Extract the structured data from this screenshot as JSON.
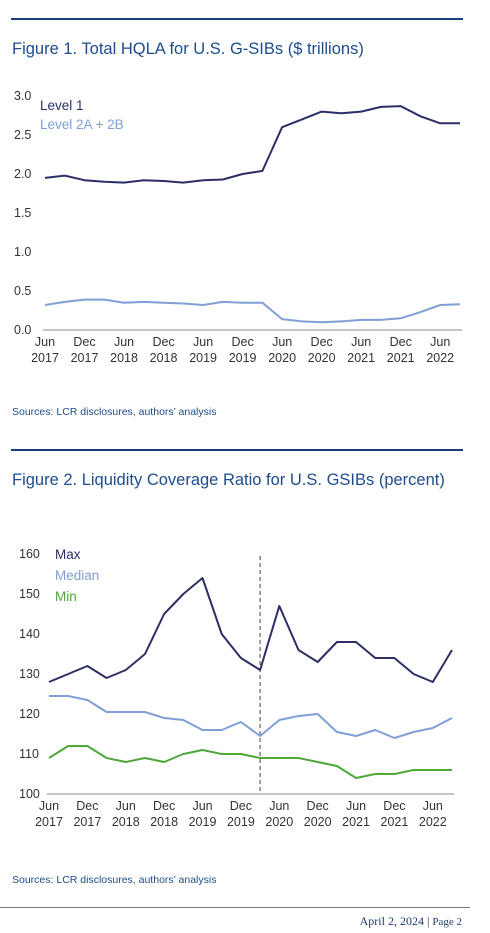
{
  "chart_data": [
    {
      "type": "line",
      "title": "Figure 1. Total HQLA for U.S. G-SIBs ($ trillions)",
      "categories": [
        "Jun 2017",
        "Sep 2017",
        "Dec 2017",
        "Mar 2018",
        "Jun 2018",
        "Sep 2018",
        "Dec 2018",
        "Mar 2019",
        "Jun 2019",
        "Sep 2019",
        "Dec 2019",
        "Mar 2020",
        "Jun 2020",
        "Sep 2020",
        "Dec 2020",
        "Mar 2021",
        "Jun 2021",
        "Sep 2021",
        "Dec 2021",
        "Mar 2022",
        "Jun 2022",
        "Sep 2022"
      ],
      "x_tick_labels": [
        {
          "month": "Jun",
          "year": "2017"
        },
        {
          "month": "Dec",
          "year": "2017"
        },
        {
          "month": "Jun",
          "year": "2018"
        },
        {
          "month": "Dec",
          "year": "2018"
        },
        {
          "month": "Jun",
          "year": "2019"
        },
        {
          "month": "Dec",
          "year": "2019"
        },
        {
          "month": "Jun",
          "year": "2020"
        },
        {
          "month": "Dec",
          "year": "2020"
        },
        {
          "month": "Jun",
          "year": "2021"
        },
        {
          "month": "Dec",
          "year": "2021"
        },
        {
          "month": "Jun",
          "year": "2022"
        }
      ],
      "y_tick_labels": [
        "0.0",
        "0.5",
        "1.0",
        "1.5",
        "2.0",
        "2.5",
        "3.0"
      ],
      "ylim": [
        0,
        3.0
      ],
      "grid": false,
      "legend_position": "top-left",
      "series": [
        {
          "name": "Level 1",
          "color": "#2b2f66",
          "values": [
            1.95,
            1.98,
            1.92,
            1.9,
            1.89,
            1.92,
            1.91,
            1.89,
            1.92,
            1.93,
            2.0,
            2.04,
            2.6,
            2.7,
            2.8,
            2.78,
            2.8,
            2.86,
            2.87,
            2.74,
            2.65,
            2.65
          ]
        },
        {
          "name": "Level 2A + 2B",
          "color": "#7f9fd6",
          "values": [
            0.32,
            0.36,
            0.39,
            0.39,
            0.35,
            0.36,
            0.35,
            0.34,
            0.32,
            0.36,
            0.35,
            0.35,
            0.14,
            0.11,
            0.1,
            0.11,
            0.13,
            0.13,
            0.15,
            0.23,
            0.32,
            0.33
          ]
        }
      ],
      "source": "Sources: LCR disclosures, authors’ analysis"
    },
    {
      "type": "line",
      "title": "Figure 2. Liquidity Coverage Ratio for U.S. GSIBs (percent)",
      "categories": [
        "Jun 2017",
        "Sep 2017",
        "Dec 2017",
        "Mar 2018",
        "Jun 2018",
        "Sep 2018",
        "Dec 2018",
        "Mar 2019",
        "Jun 2019",
        "Sep 2019",
        "Dec 2019",
        "Mar 2020",
        "Jun 2020",
        "Sep 2020",
        "Dec 2020",
        "Mar 2021",
        "Jun 2021",
        "Sep 2021",
        "Dec 2021",
        "Mar 2022",
        "Jun 2022",
        "Sep 2022"
      ],
      "x_tick_labels": [
        {
          "month": "Jun",
          "year": "2017"
        },
        {
          "month": "Dec",
          "year": "2017"
        },
        {
          "month": "Jun",
          "year": "2018"
        },
        {
          "month": "Dec",
          "year": "2018"
        },
        {
          "month": "Jun",
          "year": "2019"
        },
        {
          "month": "Dec",
          "year": "2019"
        },
        {
          "month": "Jun",
          "year": "2020"
        },
        {
          "month": "Dec",
          "year": "2020"
        },
        {
          "month": "Jun",
          "year": "2021"
        },
        {
          "month": "Dec",
          "year": "2021"
        },
        {
          "month": "Jun",
          "year": "2022"
        }
      ],
      "y_tick_labels": [
        "100",
        "110",
        "120",
        "130",
        "140",
        "150",
        "160"
      ],
      "ylim": [
        100,
        160
      ],
      "grid": false,
      "legend_position": "top-left",
      "vertical_marker": {
        "at": "Mar 2020",
        "style": "dashed"
      },
      "series": [
        {
          "name": "Max",
          "color": "#2b2f66",
          "values": [
            128,
            130,
            132,
            129,
            131,
            135,
            145,
            150,
            154,
            140,
            134,
            131,
            147,
            136,
            133,
            138,
            138,
            134,
            134,
            130,
            128,
            136
          ]
        },
        {
          "name": "Median",
          "color": "#7f9fd6",
          "values": [
            124.5,
            124.5,
            123.5,
            120.5,
            120.5,
            120.5,
            119,
            118.5,
            116,
            116,
            118,
            114.5,
            118.5,
            119.5,
            120,
            115.5,
            114.5,
            116,
            114,
            115.5,
            116.5,
            119
          ]
        },
        {
          "name": "Min",
          "color": "#4ea83c",
          "values": [
            109,
            112,
            112,
            109,
            108,
            109,
            108,
            110,
            111,
            110,
            110,
            109,
            109,
            109,
            108,
            107,
            104,
            105,
            105,
            106,
            106,
            106
          ]
        }
      ],
      "source": "Sources: LCR disclosures, authors’ analysis"
    }
  ],
  "footer": {
    "date": "April 2, 2024",
    "separator": "|",
    "page": "Page 2"
  }
}
